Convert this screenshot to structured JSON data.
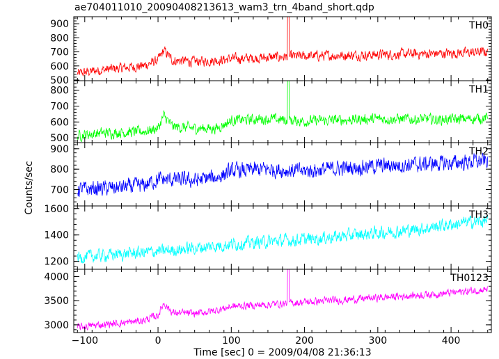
{
  "chart_data": {
    "type": "line",
    "title": "ae704011010_20090408213613_wam3_trn_4band_short.qdp",
    "xlabel": "Time [sec] 0 = 2009/04/08 21:36:13",
    "ylabel": "Counts/sec",
    "xlim": [
      -115,
      455
    ],
    "xticks": [
      -100,
      0,
      100,
      200,
      300,
      400
    ],
    "xtick_labels": [
      "−100",
      "0",
      "100",
      "200",
      "300",
      "400"
    ],
    "panels": [
      {
        "name": "TH0",
        "color": "#ff0000",
        "ylim": [
          495,
          950
        ],
        "yticks": [
          500,
          600,
          700,
          800,
          900
        ],
        "trend_x": [
          -110,
          -80,
          -40,
          -20,
          0,
          8,
          20,
          50,
          80,
          100,
          150,
          200,
          300,
          400,
          450
        ],
        "trend_y": [
          545,
          570,
          590,
          600,
          640,
          710,
          640,
          630,
          640,
          650,
          660,
          670,
          680,
          690,
          700
        ],
        "noise": 30,
        "spike_x": 178,
        "spike_y": 950
      },
      {
        "name": "TH1",
        "color": "#00ff00",
        "ylim": [
          470,
          860
        ],
        "yticks": [
          500,
          600,
          700,
          800
        ],
        "trend_x": [
          -110,
          -80,
          -20,
          0,
          8,
          20,
          50,
          80,
          100,
          150,
          200,
          300,
          400,
          450
        ],
        "trend_y": [
          515,
          530,
          540,
          560,
          640,
          570,
          560,
          560,
          610,
          620,
          605,
          620,
          615,
          625
        ],
        "noise": 28,
        "spike_x": 178,
        "spike_y": 860
      },
      {
        "name": "TH2",
        "color": "#0000ff",
        "ylim": [
          620,
          930
        ],
        "yticks": [
          700,
          800,
          900
        ],
        "trend_x": [
          -110,
          -50,
          -20,
          0,
          50,
          80,
          100,
          150,
          200,
          250,
          300,
          400,
          450
        ],
        "trend_y": [
          700,
          710,
          720,
          750,
          745,
          760,
          790,
          800,
          790,
          805,
          815,
          830,
          840
        ],
        "noise": 32,
        "spike_x": null,
        "spike_y": null
      },
      {
        "name": "TH3",
        "color": "#00ffff",
        "ylim": [
          1140,
          1620
        ],
        "yticks": [
          1200,
          1400,
          1600
        ],
        "trend_x": [
          -110,
          -50,
          0,
          50,
          100,
          150,
          200,
          250,
          300,
          350,
          400,
          450
        ],
        "trend_y": [
          1230,
          1255,
          1275,
          1300,
          1330,
          1350,
          1365,
          1390,
          1415,
          1440,
          1480,
          1510
        ],
        "noise": 40,
        "spike_x": null,
        "spike_y": null
      },
      {
        "name": "TH0123",
        "color": "#ff00ff",
        "ylim": [
          2840,
          4150
        ],
        "yticks": [
          3000,
          3500,
          4000
        ],
        "trend_x": [
          -110,
          -80,
          -40,
          -20,
          0,
          8,
          20,
          50,
          80,
          100,
          150,
          200,
          300,
          400,
          450
        ],
        "trend_y": [
          2950,
          3000,
          3050,
          3090,
          3200,
          3450,
          3250,
          3230,
          3300,
          3380,
          3420,
          3470,
          3560,
          3660,
          3740
        ],
        "noise": 65,
        "spike_x": 178,
        "spike_y": 4150
      }
    ]
  }
}
